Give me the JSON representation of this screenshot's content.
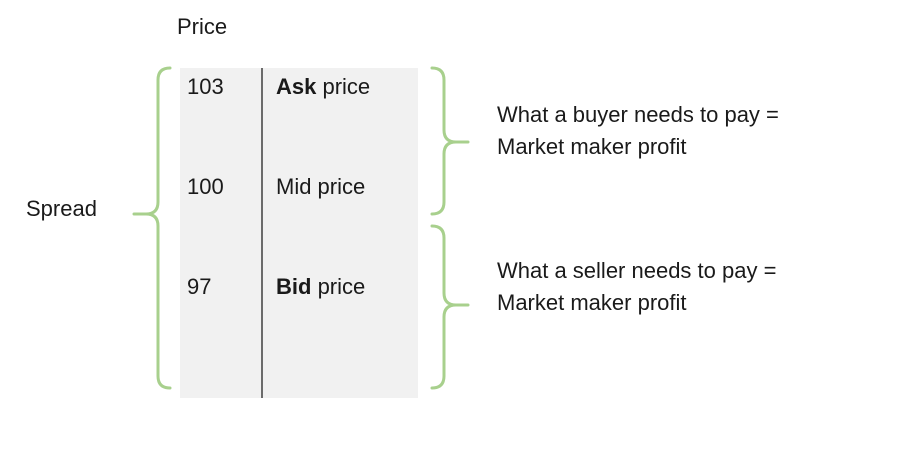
{
  "column_header": "Price",
  "rows": [
    {
      "value": "103",
      "label_bold": "Ask",
      "label_rest": " price"
    },
    {
      "value": "100",
      "label_bold": "",
      "label_rest": "Mid price"
    },
    {
      "value": "97",
      "label_bold": "Bid",
      "label_rest": " price"
    }
  ],
  "spread_label": "Spread",
  "annotations": {
    "buyer": {
      "line1": "What a buyer needs to pay =",
      "line2": "Market maker profit"
    },
    "seller": {
      "line1": "What a seller needs to pay =",
      "line2": "Market maker profit"
    }
  },
  "colors": {
    "brace": "#a8d08d",
    "table_background": "#f1f1f1",
    "divider": "#6b6b6b"
  }
}
